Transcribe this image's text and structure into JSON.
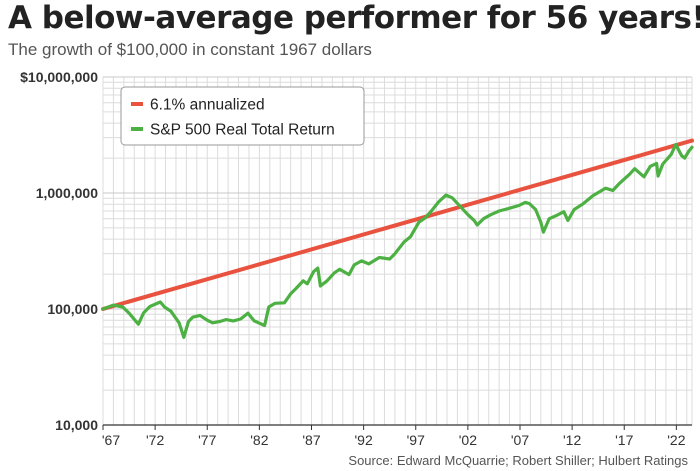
{
  "title": "A below-average performer for 56 years!",
  "subtitle": "The growth of $100,000 in constant 1967 dollars",
  "source": "Source: Edward McQuarrie; Robert Shiller; Hulbert Ratings",
  "chart_data": {
    "type": "line",
    "title": "A below-average performer for 56 years!",
    "subtitle": "The growth of $100,000 in constant 1967 dollars",
    "xlabel": "",
    "ylabel": "",
    "y_scale": "log",
    "ylim": [
      10000,
      10000000
    ],
    "xlim": [
      1967,
      2023.5
    ],
    "grid": true,
    "legend_position": "top-left",
    "yticks": [
      10000,
      100000,
      1000000,
      10000000
    ],
    "ytick_labels": [
      "10,000",
      "100,000",
      "1,000,000",
      "$10,000,000"
    ],
    "xticks": [
      1967,
      1972,
      1977,
      1982,
      1987,
      1992,
      1997,
      2002,
      2007,
      2012,
      2017,
      2022
    ],
    "xtick_labels": [
      "'67",
      "'72",
      "'77",
      "'82",
      "'87",
      "'92",
      "'97",
      "'02",
      "'07",
      "'12",
      "'17",
      "'22"
    ],
    "series": [
      {
        "name": "6.1% annualized",
        "color": "#e8523f",
        "x": [
          1967,
          2023.5
        ],
        "y": [
          100000,
          2830000
        ]
      },
      {
        "name": "S&P 500 Real Total Return",
        "color": "#4cb043",
        "x": [
          1967,
          1968,
          1968.9,
          1969.5,
          1970.4,
          1970.9,
          1971.5,
          1972.5,
          1972.9,
          1973.5,
          1974.3,
          1974.75,
          1975.2,
          1975.6,
          1976.3,
          1977,
          1977.5,
          1978.2,
          1978.8,
          1979.5,
          1980.2,
          1980.9,
          1981.5,
          1982.5,
          1982.9,
          1983.5,
          1984.4,
          1985,
          1985.5,
          1986.2,
          1986.6,
          1987.2,
          1987.6,
          1987.85,
          1988.5,
          1989.2,
          1989.7,
          1990.6,
          1991.1,
          1991.8,
          1992.5,
          1993.5,
          1994.5,
          1995,
          1995.9,
          1996.5,
          1997.3,
          1997.9,
          1998.5,
          1999.2,
          1999.9,
          2000.5,
          2001.3,
          2002,
          2002.6,
          2002.9,
          2003.5,
          2004.2,
          2005,
          2006,
          2006.9,
          2007.5,
          2007.9,
          2008.5,
          2009,
          2009.25,
          2009.8,
          2010.5,
          2011.2,
          2011.6,
          2012.2,
          2013,
          2014,
          2015.2,
          2015.9,
          2016.5,
          2017.5,
          2018,
          2018.9,
          2019.5,
          2020.1,
          2020.25,
          2020.7,
          2021.5,
          2021.95,
          2022.5,
          2022.8,
          2023.2,
          2023.5
        ],
        "y": [
          100000,
          108000,
          104000,
          92000,
          74000,
          93000,
          105000,
          115000,
          104000,
          96000,
          76000,
          57000,
          78000,
          85000,
          88000,
          80000,
          76000,
          78000,
          81000,
          79000,
          82000,
          92000,
          79000,
          72000,
          104000,
          112000,
          113000,
          135000,
          150000,
          175000,
          165000,
          210000,
          225000,
          158000,
          175000,
          205000,
          220000,
          198000,
          240000,
          260000,
          245000,
          278000,
          270000,
          300000,
          380000,
          420000,
          560000,
          610000,
          700000,
          840000,
          960000,
          910000,
          760000,
          650000,
          580000,
          530000,
          600000,
          650000,
          700000,
          740000,
          780000,
          830000,
          810000,
          720000,
          560000,
          460000,
          600000,
          640000,
          690000,
          580000,
          720000,
          800000,
          950000,
          1100000,
          1050000,
          1200000,
          1450000,
          1620000,
          1380000,
          1700000,
          1800000,
          1400000,
          1780000,
          2150000,
          2620000,
          2100000,
          2000000,
          2300000,
          2480000
        ]
      }
    ]
  }
}
